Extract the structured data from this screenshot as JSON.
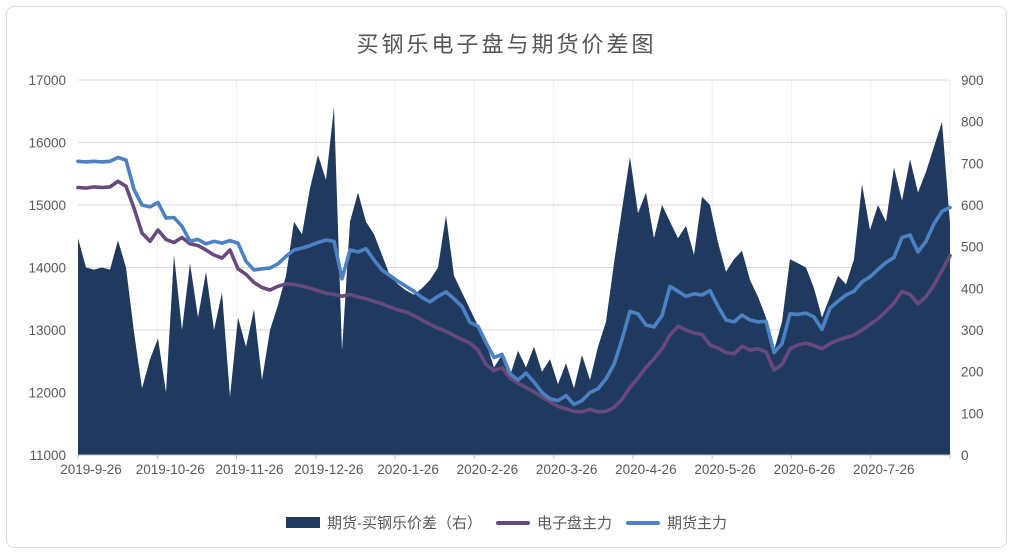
{
  "title": "买钢乐电子盘与期货价差图",
  "colors": {
    "spread_area": "#1F3A5E",
    "electronic_line": "#68497B",
    "futures_line": "#4C82C4",
    "grid": "#D9D9D9",
    "grid_vertical": "#EFEFEF",
    "axis_text": "#595959",
    "axis_tick": "#BFBFBF"
  },
  "chart_data": {
    "type": "area",
    "title": "买钢乐电子盘与期货价差图",
    "x_tick_labels": [
      "2019-9-26",
      "2019-10-26",
      "2019-11-26",
      "2019-12-26",
      "2020-1-26",
      "2020-2-26",
      "2020-3-26",
      "2020-4-26",
      "2020-5-26",
      "2020-6-26",
      "2020-7-26"
    ],
    "left_axis": {
      "range": [
        11000,
        17000
      ],
      "ticks": [
        11000,
        12000,
        13000,
        14000,
        15000,
        16000,
        17000
      ]
    },
    "right_axis": {
      "range": [
        0,
        900
      ],
      "ticks": [
        0,
        100,
        200,
        300,
        400,
        500,
        600,
        700,
        800,
        900
      ]
    },
    "grid": "on",
    "legend_position": "bottom",
    "series": [
      {
        "name": "期货-买钢乐价差（右）",
        "type": "area",
        "axis": "right",
        "color": "#1F3A5E",
        "values": [
          520,
          450,
          445,
          450,
          445,
          515,
          450,
          295,
          160,
          230,
          280,
          150,
          480,
          300,
          460,
          330,
          440,
          300,
          390,
          140,
          330,
          260,
          350,
          180,
          300,
          360,
          430,
          560,
          530,
          640,
          720,
          660,
          835,
          250,
          560,
          630,
          560,
          530,
          480,
          430,
          410,
          395,
          385,
          400,
          420,
          450,
          575,
          430,
          390,
          350,
          310,
          270,
          210,
          240,
          190,
          250,
          210,
          260,
          200,
          230,
          170,
          220,
          160,
          240,
          180,
          260,
          320,
          460,
          590,
          715,
          580,
          630,
          520,
          600,
          560,
          520,
          550,
          480,
          620,
          600,
          510,
          440,
          470,
          490,
          420,
          380,
          330,
          250,
          320,
          470,
          460,
          450,
          400,
          330,
          380,
          430,
          410,
          470,
          650,
          540,
          600,
          560,
          690,
          610,
          710,
          630,
          680,
          740,
          800,
          555
        ]
      },
      {
        "name": "电子盘主力",
        "type": "line",
        "axis": "left",
        "color": "#68497B",
        "values": [
          15280,
          15270,
          15290,
          15280,
          15290,
          15380,
          15300,
          14950,
          14550,
          14420,
          14600,
          14450,
          14400,
          14480,
          14380,
          14350,
          14280,
          14200,
          14150,
          14280,
          13980,
          13890,
          13760,
          13680,
          13640,
          13700,
          13740,
          13730,
          13700,
          13670,
          13630,
          13590,
          13570,
          13540,
          13570,
          13530,
          13500,
          13460,
          13420,
          13370,
          13320,
          13290,
          13230,
          13160,
          13090,
          13030,
          12980,
          12910,
          12850,
          12790,
          12680,
          12450,
          12350,
          12400,
          12230,
          12150,
          12080,
          12010,
          11930,
          11850,
          11780,
          11740,
          11700,
          11690,
          11730,
          11690,
          11700,
          11760,
          11890,
          12080,
          12230,
          12400,
          12540,
          12700,
          12920,
          13060,
          13000,
          12950,
          12930,
          12760,
          12710,
          12640,
          12620,
          12740,
          12680,
          12700,
          12650,
          12360,
          12450,
          12700,
          12760,
          12790,
          12750,
          12700,
          12780,
          12840,
          12880,
          12920,
          13000,
          13090,
          13180,
          13300,
          13430,
          13620,
          13570,
          13420,
          13530,
          13720,
          13950,
          14190
        ]
      },
      {
        "name": "期货主力",
        "type": "line",
        "axis": "left",
        "color": "#4C82C4",
        "values": [
          15700,
          15690,
          15700,
          15690,
          15700,
          15760,
          15720,
          15250,
          15000,
          14970,
          15040,
          14790,
          14800,
          14660,
          14420,
          14450,
          14380,
          14420,
          14390,
          14430,
          14390,
          14100,
          13960,
          13980,
          13990,
          14060,
          14180,
          14280,
          14310,
          14350,
          14400,
          14440,
          14420,
          13820,
          14280,
          14250,
          14300,
          14120,
          13960,
          13870,
          13780,
          13700,
          13620,
          13520,
          13450,
          13540,
          13610,
          13500,
          13380,
          13120,
          13060,
          12800,
          12560,
          12610,
          12300,
          12200,
          12310,
          12170,
          12000,
          11900,
          11870,
          11950,
          11810,
          11870,
          12000,
          12060,
          12220,
          12450,
          12850,
          13300,
          13260,
          13080,
          13050,
          13230,
          13700,
          13620,
          13540,
          13580,
          13560,
          13630,
          13380,
          13160,
          13130,
          13240,
          13160,
          13130,
          13140,
          12640,
          12780,
          13260,
          13250,
          13270,
          13210,
          13010,
          13350,
          13460,
          13560,
          13620,
          13770,
          13850,
          13970,
          14080,
          14160,
          14480,
          14520,
          14250,
          14420,
          14700,
          14900,
          14960
        ]
      }
    ]
  }
}
